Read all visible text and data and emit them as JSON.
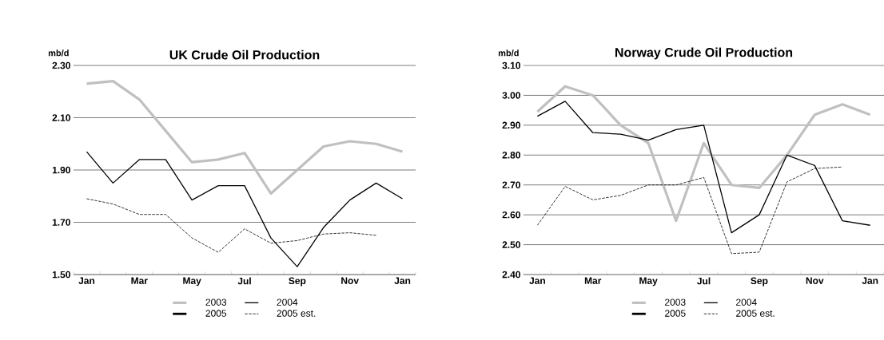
{
  "chart_data": [
    {
      "type": "line",
      "title": "UK Crude Oil Production",
      "ylabel": "mb/d",
      "categories": [
        "Jan",
        null,
        "Mar",
        null,
        "May",
        null,
        "Jul",
        null,
        "Sep",
        null,
        "Nov",
        null,
        "Jan"
      ],
      "series": [
        {
          "name": "2003",
          "color": "#c0c0c0",
          "values": [
            2.23,
            2.24,
            2.17,
            2.05,
            1.93,
            1.94,
            1.965,
            1.81,
            1.9,
            1.99,
            2.01,
            2.0,
            1.97
          ]
        },
        {
          "name": "2004",
          "color": "#000000",
          "values": [
            1.97,
            1.85,
            1.94,
            1.94,
            1.785,
            1.84,
            1.84,
            1.64,
            1.53,
            1.68,
            1.785,
            1.85,
            1.79
          ]
        },
        {
          "name": "2005",
          "color": "#000000",
          "values": [
            null,
            null,
            null,
            null,
            null,
            null,
            null,
            null,
            null,
            null,
            null,
            null,
            null
          ]
        },
        {
          "name": "2005 est.",
          "color": "#000000",
          "line_style": "dashed",
          "values": [
            1.79,
            1.77,
            1.73,
            1.73,
            1.64,
            1.585,
            1.675,
            1.62,
            1.63,
            1.655,
            1.66,
            1.65,
            null
          ]
        }
      ],
      "ylim": [
        1.5,
        2.3
      ],
      "yticks": [
        {
          "value": 1.5,
          "label": "1.50"
        },
        {
          "value": 1.7,
          "label": "1.70"
        },
        {
          "value": 1.9,
          "label": "1.90"
        },
        {
          "value": 2.1,
          "label": "2.10"
        },
        {
          "value": 2.3,
          "label": "2.30"
        }
      ],
      "grid": "y",
      "legend": "bottom"
    },
    {
      "type": "line",
      "title": "Norway Crude Oil Production",
      "ylabel": "mb/d",
      "categories": [
        "Jan",
        null,
        "Mar",
        null,
        "May",
        null,
        "Jul",
        null,
        "Sep",
        null,
        "Nov",
        null,
        "Jan"
      ],
      "series": [
        {
          "name": "2003",
          "color": "#c0c0c0",
          "values": [
            2.945,
            3.03,
            3.0,
            2.9,
            2.84,
            2.58,
            2.84,
            2.7,
            2.69,
            2.8,
            2.935,
            2.97,
            2.935
          ]
        },
        {
          "name": "2004",
          "color": "#000000",
          "values": [
            2.93,
            2.98,
            2.875,
            2.87,
            2.85,
            2.885,
            2.9,
            2.54,
            2.6,
            2.8,
            2.765,
            2.58,
            2.565
          ]
        },
        {
          "name": "2005",
          "color": "#000000",
          "values": [
            null,
            null,
            null,
            null,
            null,
            null,
            null,
            null,
            null,
            null,
            null,
            null,
            null
          ]
        },
        {
          "name": "2005 est.",
          "color": "#000000",
          "line_style": "dashed",
          "values": [
            2.565,
            2.695,
            2.65,
            2.665,
            2.7,
            2.7,
            2.725,
            2.47,
            2.475,
            2.71,
            2.755,
            2.76,
            null
          ]
        }
      ],
      "ylim": [
        2.4,
        3.1
      ],
      "yticks": [
        {
          "value": 2.4,
          "label": "2.40"
        },
        {
          "value": 2.5,
          "label": "2.50"
        },
        {
          "value": 2.6,
          "label": "2.60"
        },
        {
          "value": 2.7,
          "label": "2.70"
        },
        {
          "value": 2.8,
          "label": "2.80"
        },
        {
          "value": 2.9,
          "label": "2.90"
        },
        {
          "value": 3.0,
          "label": "3.00"
        },
        {
          "value": 3.1,
          "label": "3.10"
        }
      ],
      "grid": "y",
      "legend": "bottom"
    }
  ]
}
